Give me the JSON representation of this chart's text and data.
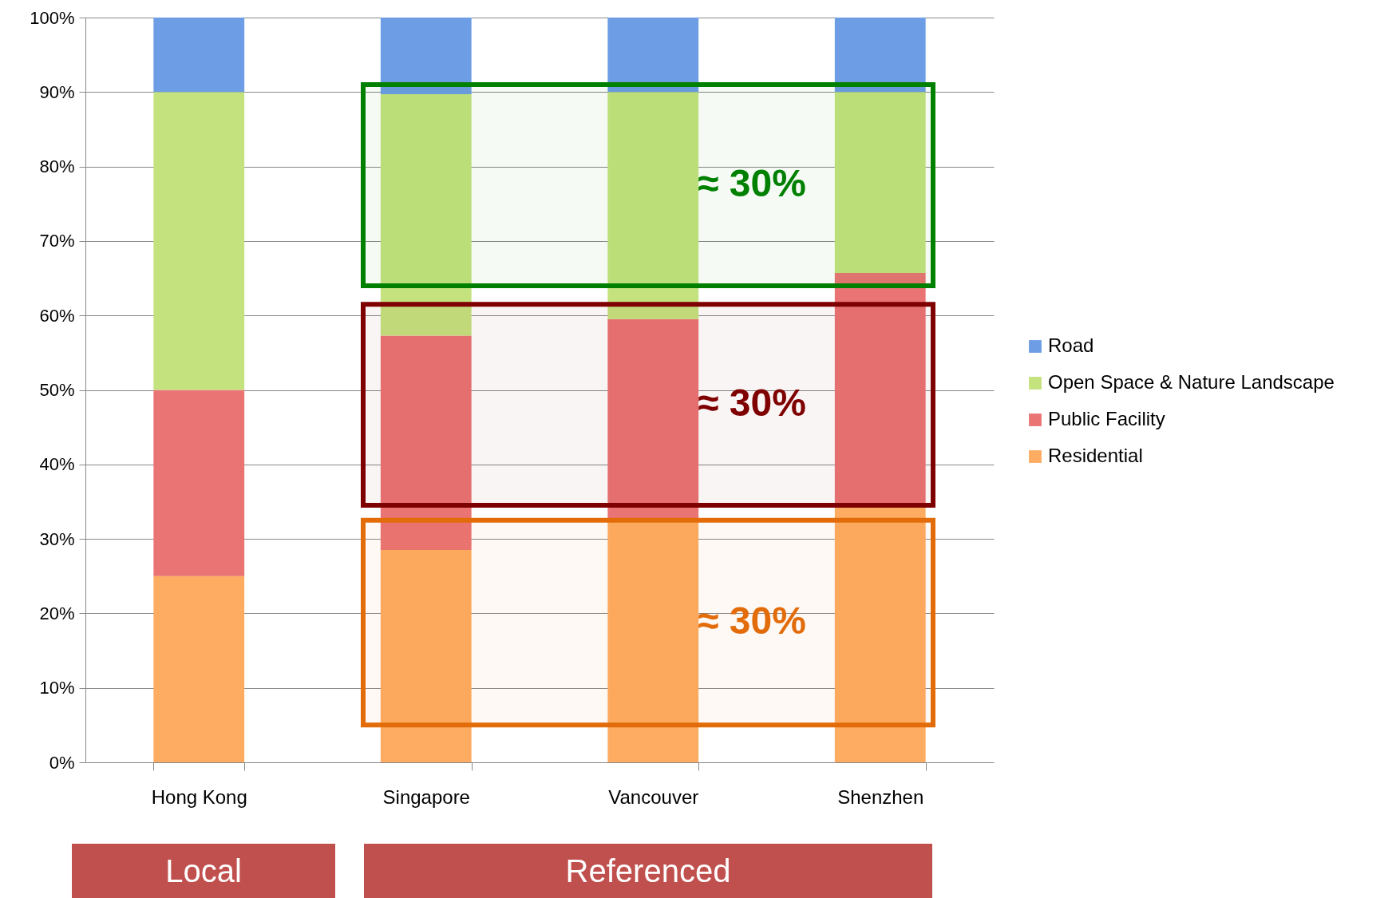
{
  "chart_data": {
    "type": "bar",
    "stacked": true,
    "categories": [
      "Hong Kong",
      "Singapore",
      "Vancouver",
      "Shenzhen"
    ],
    "series": [
      {
        "name": "Residential",
        "color": "#fdac62",
        "values": [
          25,
          28.5,
          32.3,
          34.3
        ]
      },
      {
        "name": "Public Facility",
        "color": "#ea7474",
        "values": [
          25,
          28.8,
          27.2,
          31.4
        ]
      },
      {
        "name": "Open Space & Nature Landscape",
        "color": "#c4e27e",
        "values": [
          40,
          32.4,
          30.5,
          24.3
        ]
      },
      {
        "name": "Road",
        "color": "#6d9de4",
        "values": [
          10,
          10.3,
          10,
          10
        ]
      }
    ],
    "ylim": [
      0,
      100
    ],
    "yticks": [
      {
        "value": 0,
        "label": "0%"
      },
      {
        "value": 10,
        "label": "10%"
      },
      {
        "value": 20,
        "label": "20%"
      },
      {
        "value": 30,
        "label": "30%"
      },
      {
        "value": 40,
        "label": "40%"
      },
      {
        "value": 50,
        "label": "50%"
      },
      {
        "value": 60,
        "label": "60%"
      },
      {
        "value": 70,
        "label": "70%"
      },
      {
        "value": 80,
        "label": "80%"
      },
      {
        "value": 90,
        "label": "90%"
      },
      {
        "value": 100,
        "label": "100%"
      }
    ],
    "grid": "y",
    "legend": "right",
    "bands": [
      {
        "axis": "y",
        "from": 64,
        "to": 91,
        "label": "≈ 30%",
        "color": "#008000"
      },
      {
        "axis": "y",
        "from": 34.5,
        "to": 61.5,
        "label": "≈ 30%",
        "color": "#7f0000"
      },
      {
        "axis": "y",
        "from": 5,
        "to": 32.5,
        "label": "≈ 30%",
        "color": "#e36c0a"
      }
    ],
    "annotations": [
      "Local",
      "Referenced"
    ]
  }
}
